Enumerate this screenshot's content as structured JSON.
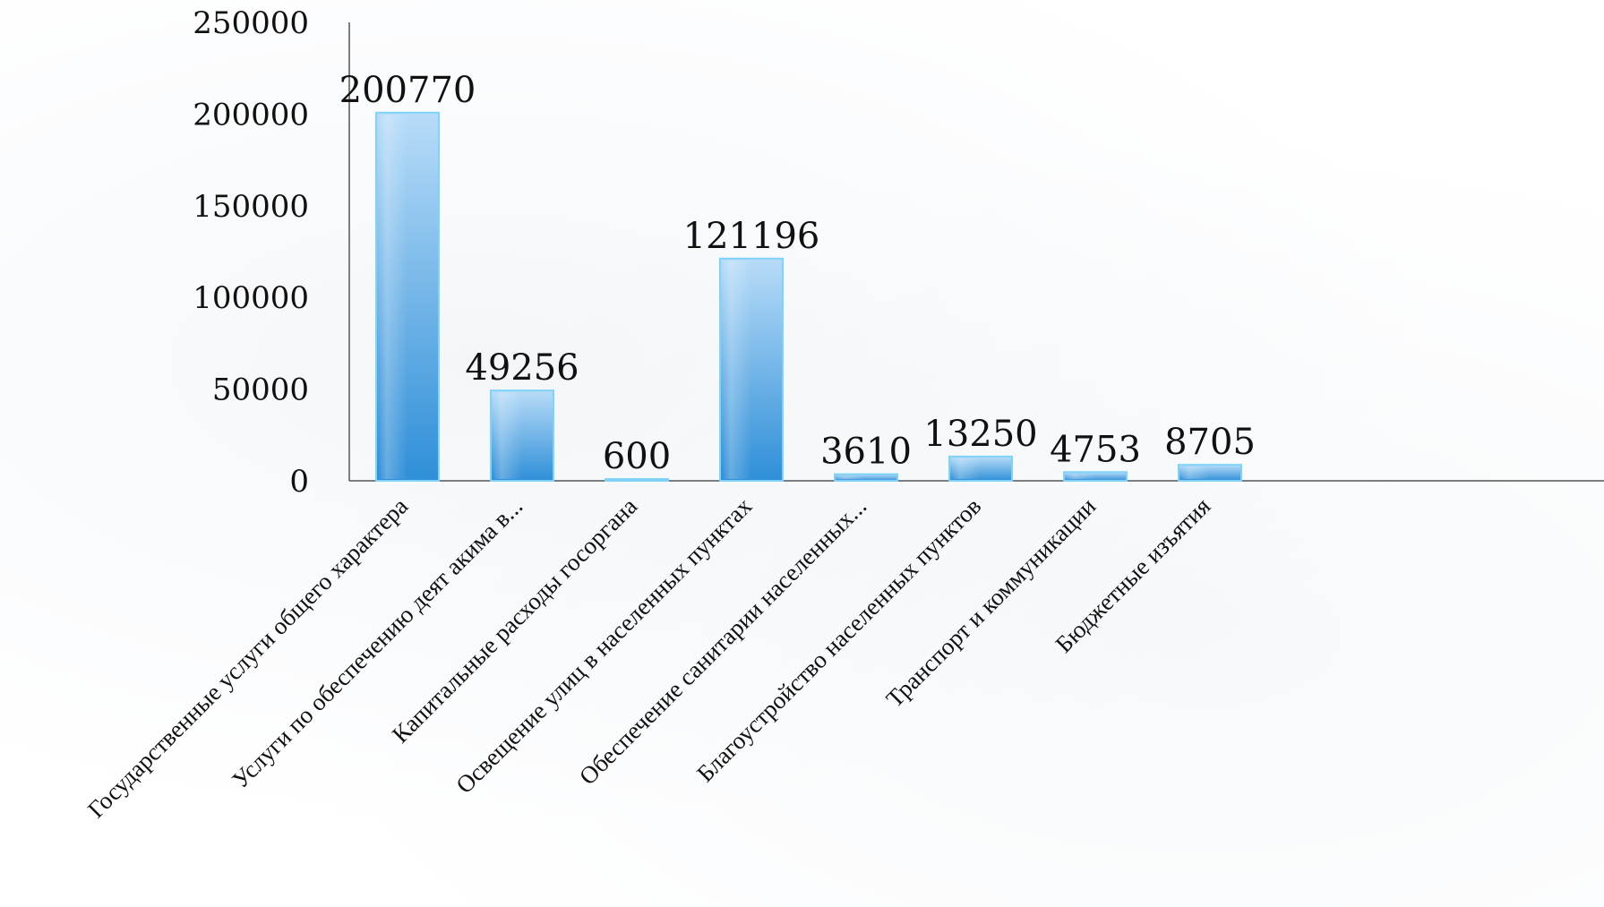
{
  "chart_data": {
    "type": "bar",
    "title": "",
    "xlabel": "",
    "ylabel": "",
    "categories": [
      "Государственные услуги общего характера",
      "Услуги по обеспечению деят акима в...",
      "Капитальные расходы госоргана",
      "Освещение улиц в населенных пунктах",
      "Обеспечение санитарии населенных...",
      "Благоустройство населенных пунктов",
      "Транспорт и коммуникации",
      "Бюджетные изъятия"
    ],
    "values": [
      200770,
      49256,
      600,
      121196,
      3610,
      13250,
      4753,
      8705
    ],
    "data_labels": [
      "200770",
      "49256",
      "600",
      "121196",
      "3610",
      "13250",
      "4753",
      "8705"
    ],
    "ylim": [
      0,
      250000
    ],
    "yticks": [
      "0",
      "50000",
      "100000",
      "150000",
      "200000",
      "250000"
    ],
    "ytick_values": [
      0,
      50000,
      100000,
      150000,
      200000,
      250000
    ],
    "grid": false,
    "legend": "none",
    "colors": {
      "bar_top": "#b8dcf8",
      "bar_bottom": "#2f8fd8",
      "bar_edge": "#7fd3f7",
      "axis": "#555555"
    }
  }
}
